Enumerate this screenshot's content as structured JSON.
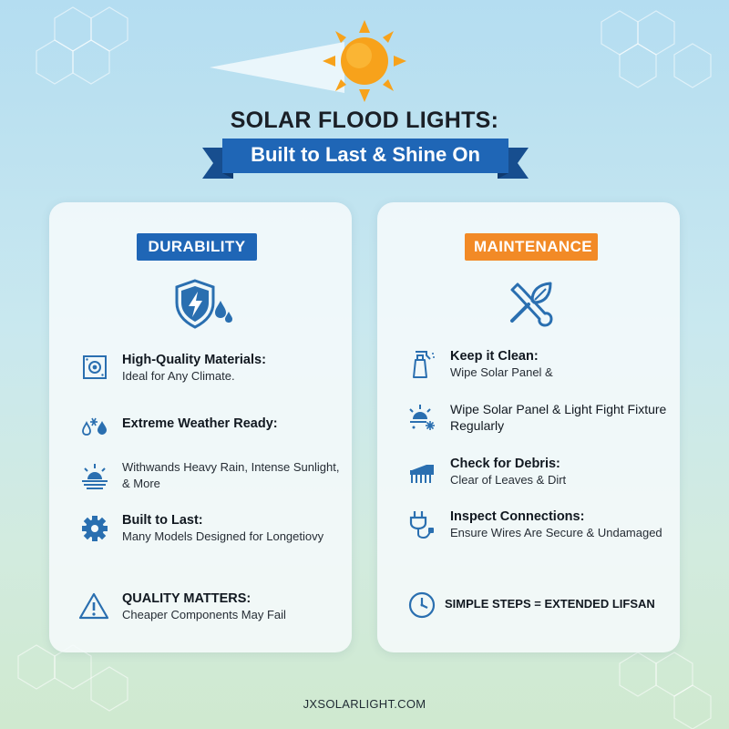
{
  "header": {
    "title": "SOLAR FLOOD LIGHTS:",
    "subtitle": "Built to Last & Shine On"
  },
  "durability": {
    "badge": "DURABILITY",
    "main_icon": "shield-lightning-icon",
    "items": [
      {
        "icon": "materials-icon",
        "heading": "High-Quality Materials:",
        "desc": "Ideal for Any Climate."
      },
      {
        "icon": "weather-icon",
        "heading": "Extreme Weather Ready:",
        "desc": ""
      },
      {
        "icon": "sunlight-icon",
        "heading": "",
        "desc": "Withwands Heavy Rain, Intense Sunlight, & More"
      },
      {
        "icon": "gear-icon",
        "heading": "Built to Last:",
        "desc": "Many Models Designed for Longetiovy"
      },
      {
        "icon": "warning-icon",
        "heading": "QUALITY MATTERS:",
        "desc": "Cheaper Components May Fail"
      }
    ]
  },
  "maintenance": {
    "badge": "MAINTENANCE",
    "main_icon": "wrench-leaf-icon",
    "items": [
      {
        "icon": "spray-bottle-icon",
        "heading": "Keep it Clean:",
        "desc": "Wipe Solar Panel &"
      },
      {
        "icon": "sun-snow-icon",
        "heading": "",
        "desc": "Wipe Solar Panel & Light Fight Fixture Regularly"
      },
      {
        "icon": "brush-icon",
        "heading": "Check for Debris:",
        "desc": "Clear of Leaves & Dirt"
      },
      {
        "icon": "plug-icon",
        "heading": "Inspect Connections:",
        "desc": "Ensure Wires Are Secure & Undamaged"
      },
      {
        "icon": "clock-icon",
        "heading": "SIMPLE STEPS = EXTENDED LIFSAN",
        "desc": ""
      }
    ]
  },
  "footer": {
    "site": "JXSOLARLIGHT.COM"
  },
  "colors": {
    "blue": "#1f66b6",
    "orange": "#f28a26",
    "sun": "#f7a21b",
    "icon": "#2a6fb0"
  }
}
